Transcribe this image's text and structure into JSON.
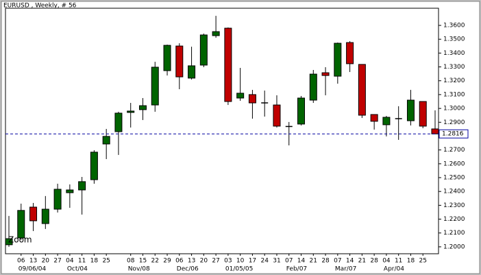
{
  "chart_data": {
    "type": "candlestick",
    "title": "EURUSD , Weekly, # 56",
    "zoom_label": "Zoom",
    "categories": [
      null,
      "06",
      "13",
      "20",
      "27",
      "04",
      "11",
      "18",
      "25",
      null,
      "08",
      "15",
      "22",
      "29",
      "06",
      "13",
      "20",
      "27",
      "03",
      "10",
      "17",
      "24",
      "31",
      "07",
      "14",
      "21",
      "28",
      "07",
      "14",
      "21",
      "28",
      "04",
      "11",
      "18",
      "25",
      null
    ],
    "period_labels": [
      null,
      "09/06/04",
      null,
      null,
      null,
      "Oct/04",
      null,
      null,
      null,
      null,
      "Nov/08",
      null,
      null,
      null,
      "Dec/06",
      null,
      null,
      null,
      "01/05/05",
      null,
      null,
      null,
      null,
      "Feb/07",
      null,
      null,
      null,
      "Mar/07",
      null,
      null,
      null,
      "Apr/04",
      null,
      null,
      null,
      null
    ],
    "open": [
      1.2015,
      1.2064,
      1.2287,
      1.2168,
      1.2272,
      1.2391,
      1.2411,
      1.2485,
      1.2743,
      1.2832,
      1.2971,
      1.2991,
      1.3025,
      1.3273,
      1.3451,
      1.3219,
      1.3313,
      1.3526,
      1.358,
      1.3075,
      1.31,
      1.304,
      1.3025,
      1.2867,
      1.2887,
      1.306,
      1.3258,
      1.3233,
      1.3476,
      1.3318,
      1.2956,
      1.2882,
      1.2926,
      1.2911,
      1.305,
      1.2852
    ],
    "high": [
      1.2223,
      1.2312,
      1.2317,
      1.2367,
      1.2456,
      1.2451,
      1.2505,
      1.2698,
      1.2852,
      1.2976,
      1.304,
      1.3075,
      1.3337,
      1.3461,
      1.3471,
      1.3446,
      1.3541,
      1.3669,
      1.3585,
      1.3293,
      1.3134,
      1.3129,
      1.3095,
      1.2902,
      1.309,
      1.3278,
      1.3298,
      1.3476,
      1.3486,
      1.3318,
      1.2956,
      1.2946,
      1.3016,
      1.3134,
      1.305,
      1.2986
    ],
    "low": [
      1.2,
      1.205,
      1.2114,
      1.2129,
      1.2248,
      1.2282,
      1.2233,
      1.2456,
      1.2634,
      1.2664,
      1.2862,
      1.2916,
      1.2976,
      1.3238,
      1.3139,
      1.3209,
      1.3298,
      1.3511,
      1.3025,
      1.3055,
      1.2926,
      1.2941,
      1.2862,
      1.2733,
      1.2877,
      1.304,
      1.3095,
      1.3179,
      1.3263,
      1.2931,
      1.2847,
      1.2798,
      1.2773,
      1.2877,
      1.2857,
      1.2816
    ],
    "close": [
      1.2059,
      1.2263,
      1.2188,
      1.2272,
      1.2416,
      1.2411,
      1.2471,
      1.2684,
      1.2798,
      1.2966,
      1.2981,
      1.302,
      1.3298,
      1.3456,
      1.3228,
      1.3308,
      1.3531,
      1.3555,
      1.305,
      1.311,
      1.304,
      1.304,
      1.2872,
      1.2872,
      1.3075,
      1.3248,
      1.3238,
      1.3471,
      1.3323,
      1.2951,
      1.2907,
      1.2936,
      1.2926,
      1.306,
      1.2872,
      1.2816
    ],
    "up_color": "#006400",
    "down_color": "#c00000",
    "current_price": 1.2816,
    "price_line_color": "#0000a0",
    "ylim": [
      1.195,
      1.3724
    ],
    "yticks": [
      {
        "value": 1.2,
        "label": "1.2000"
      },
      {
        "value": 1.21,
        "label": "1.2100"
      },
      {
        "value": 1.22,
        "label": "1.2200"
      },
      {
        "value": 1.23,
        "label": "1.2300"
      },
      {
        "value": 1.24,
        "label": "1.2400"
      },
      {
        "value": 1.25,
        "label": "1.2500"
      },
      {
        "value": 1.26,
        "label": "1.2600"
      },
      {
        "value": 1.27,
        "label": "1.2700"
      },
      {
        "value": 1.28,
        "label": "1.2800"
      },
      {
        "value": 1.29,
        "label": "1.2900"
      },
      {
        "value": 1.3,
        "label": "1.3000"
      },
      {
        "value": 1.31,
        "label": "1.3100"
      },
      {
        "value": 1.32,
        "label": "1.3200"
      },
      {
        "value": 1.33,
        "label": "1.3300"
      },
      {
        "value": 1.34,
        "label": "1.3400"
      },
      {
        "value": 1.35,
        "label": "1.3500"
      },
      {
        "value": 1.36,
        "label": "1.3600"
      }
    ],
    "grid": false
  }
}
